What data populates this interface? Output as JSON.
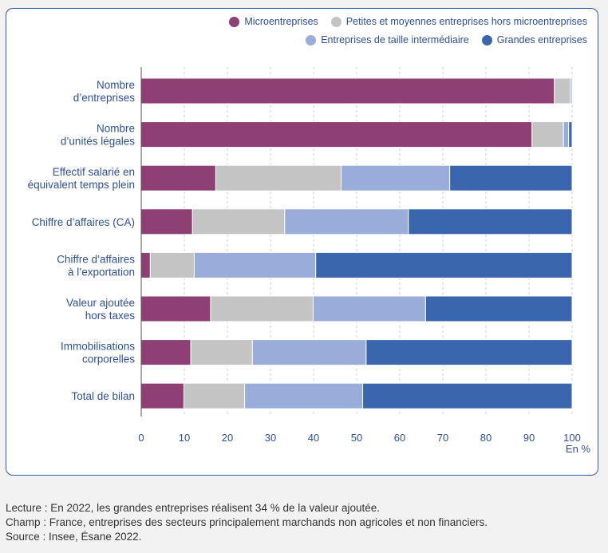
{
  "chart_data": {
    "type": "bar",
    "orientation": "horizontal",
    "stacked": true,
    "categories": [
      [
        "Nombre",
        "d’entreprises"
      ],
      [
        "Nombre",
        "d’unités légales"
      ],
      [
        "Effectif salarié en",
        "équivalent temps plein"
      ],
      [
        "Chiffre d’affaires (CA)"
      ],
      [
        "Chiffre d’affaires",
        "à l’exportation"
      ],
      [
        "Valeur ajoutée",
        "hors taxes"
      ],
      [
        "Immobilisations",
        "corporelles"
      ],
      [
        "Total de bilan"
      ]
    ],
    "series": [
      {
        "name": "Microentreprises",
        "color": "#8e3f73",
        "values": [
          95.9,
          90.7,
          17.3,
          11.9,
          2.1,
          16.1,
          11.5,
          9.9
        ]
      },
      {
        "name": "Petites et moyennes entreprises hors microentreprises",
        "color": "#c4c4c4",
        "values": [
          3.7,
          7.3,
          29.1,
          21.4,
          10.2,
          23.8,
          14.3,
          14.1
        ]
      },
      {
        "name": "Entreprises de taille intermédiaire",
        "color": "#9aacda",
        "values": [
          0.4,
          1.2,
          25.2,
          28.7,
          28.2,
          26.1,
          26.4,
          27.4
        ]
      },
      {
        "name": "Grandes entreprises",
        "color": "#3a66ae",
        "values": [
          0.0,
          0.8,
          28.4,
          38.0,
          59.5,
          34.0,
          47.8,
          48.6
        ]
      }
    ],
    "x_ticks": [
      0,
      10,
      20,
      30,
      40,
      50,
      60,
      70,
      80,
      90,
      100
    ],
    "xlim": [
      0,
      100
    ],
    "xlabel": "En %",
    "grid": "vertical dashed"
  },
  "legend": {
    "row1": [
      "Microentreprises",
      "Petites et moyennes entreprises hors microentreprises"
    ],
    "row2": [
      "Entreprises de taille intermédiaire",
      "Grandes entreprises"
    ]
  },
  "notes": {
    "lecture": "Lecture : En 2022, les grandes entreprises réalisent 34 % de la valeur ajoutée.",
    "champ": "Champ : France, entreprises des secteurs principalement marchands non agricoles et non financiers.",
    "source": "Source : Insee, Ésane 2022."
  }
}
